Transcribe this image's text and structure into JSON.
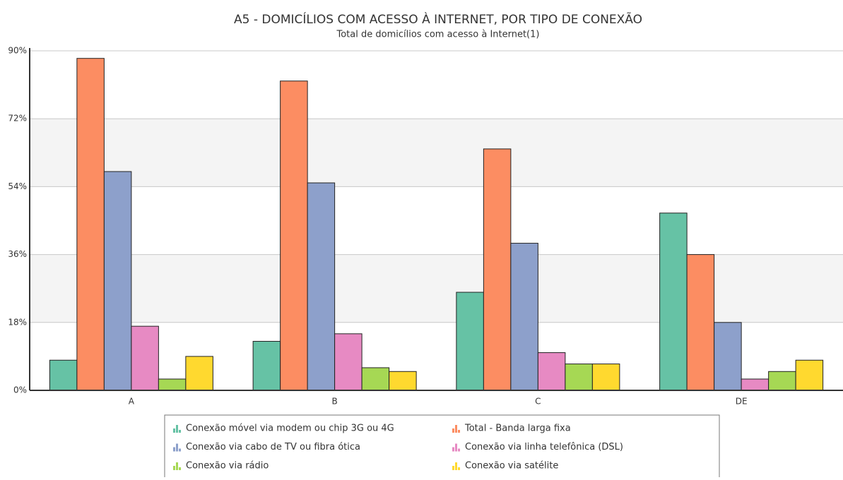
{
  "chart_data": {
    "type": "bar",
    "title": "A5 - DOMICÍLIOS COM ACESSO À INTERNET, POR TIPO DE CONEXÃO",
    "subtitle": "Total de domicílios com acesso à Internet(1)",
    "categories": [
      "A",
      "B",
      "C",
      "DE"
    ],
    "series": [
      {
        "name": "Conexão móvel via modem ou chip 3G ou 4G",
        "color": "#66c2a5",
        "values": [
          8,
          13,
          26,
          47
        ]
      },
      {
        "name": "Total - Banda larga fixa",
        "color": "#fc8d62",
        "values": [
          88,
          82,
          64,
          36
        ]
      },
      {
        "name": "Conexão via cabo de TV ou fibra ótica",
        "color": "#8da0cb",
        "values": [
          58,
          55,
          39,
          18
        ]
      },
      {
        "name": "Conexão via linha telefônica (DSL)",
        "color": "#e78ac3",
        "values": [
          17,
          15,
          10,
          3
        ]
      },
      {
        "name": "Conexão via rádio",
        "color": "#a6d854",
        "values": [
          3,
          6,
          7,
          5
        ]
      },
      {
        "name": "Conexão via satélite",
        "color": "#ffd92f",
        "values": [
          9,
          5,
          7,
          8
        ]
      }
    ],
    "ylim": [
      0,
      90
    ],
    "yticks": [
      {
        "value": 0,
        "label": "0%"
      },
      {
        "value": 18,
        "label": "18%"
      },
      {
        "value": 36,
        "label": "36%"
      },
      {
        "value": 54,
        "label": "54%"
      },
      {
        "value": 72,
        "label": "72%"
      },
      {
        "value": 90,
        "label": "90%"
      }
    ],
    "grid": true,
    "legend": "bottom"
  }
}
